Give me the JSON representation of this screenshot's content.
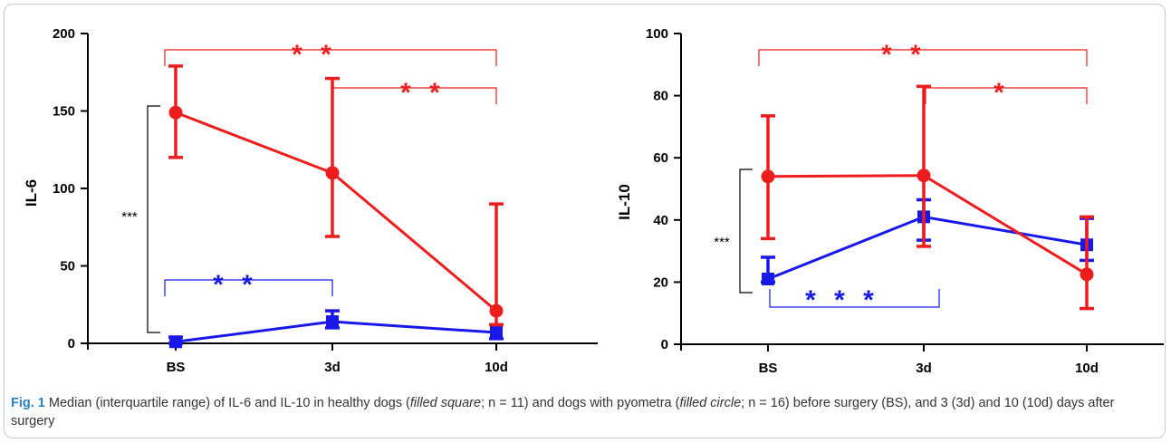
{
  "chart_data": [
    {
      "type": "line",
      "ylabel": "IL-6",
      "xlabel": "",
      "categories": [
        "BS",
        "3d",
        "10d"
      ],
      "ylim": [
        0,
        200
      ],
      "yticks": [
        0,
        50,
        100,
        150,
        200
      ],
      "series": [
        {
          "marker": "filled circle",
          "color": "#ee1c1c",
          "values": [
            149,
            110,
            21
          ],
          "q1": [
            120,
            69,
            12
          ],
          "q3": [
            179,
            171,
            90
          ]
        },
        {
          "marker": "filled square",
          "color": "#1818e8",
          "values": [
            1,
            14,
            7
          ],
          "q1": [
            0,
            10,
            3
          ],
          "q3": [
            4,
            21,
            12
          ]
        }
      ],
      "significance": [
        {
          "label": "**",
          "color": "red",
          "from": "BS",
          "to": "10d"
        },
        {
          "label": "**",
          "color": "red",
          "from": "3d",
          "to": "10d"
        },
        {
          "label": "**",
          "color": "blue",
          "from": "BS",
          "to": "3d"
        },
        {
          "label": "***",
          "color": "black",
          "between": "groups at BS"
        }
      ]
    },
    {
      "type": "line",
      "ylabel": "IL-10",
      "xlabel": "",
      "categories": [
        "BS",
        "3d",
        "10d"
      ],
      "ylim": [
        0,
        100
      ],
      "yticks": [
        0,
        20,
        40,
        60,
        80,
        100
      ],
      "series": [
        {
          "marker": "filled circle",
          "color": "#ee1c1c",
          "values": [
            54,
            54.3,
            22.5
          ],
          "q1": [
            34,
            31.5,
            11.5
          ],
          "q3": [
            73.5,
            83,
            41
          ]
        },
        {
          "marker": "filled square",
          "color": "#1818e8",
          "values": [
            21,
            41,
            32
          ],
          "q1": [
            20,
            33.5,
            27
          ],
          "q3": [
            28,
            46.5,
            40.5
          ]
        }
      ],
      "significance": [
        {
          "label": "**",
          "color": "red",
          "from": "BS",
          "to": "10d"
        },
        {
          "label": "*",
          "color": "red",
          "from": "3d",
          "to": "10d"
        },
        {
          "label": "***",
          "color": "blue",
          "from": "BS",
          "to": "3d"
        },
        {
          "label": "***",
          "color": "black",
          "between": "groups at BS"
        }
      ]
    }
  ],
  "caption": {
    "fig": "Fig. 1",
    "t1": " Median (interquartile range) of IL-6 and IL-10 in healthy dogs (",
    "i1": "filled square",
    "t2": "; n = 11) and dogs with pyometra (",
    "i2": "filled circle",
    "t3": "; n = 16) before surgery (BS), and 3 (3d) and 10 (10d) days after surgery"
  }
}
